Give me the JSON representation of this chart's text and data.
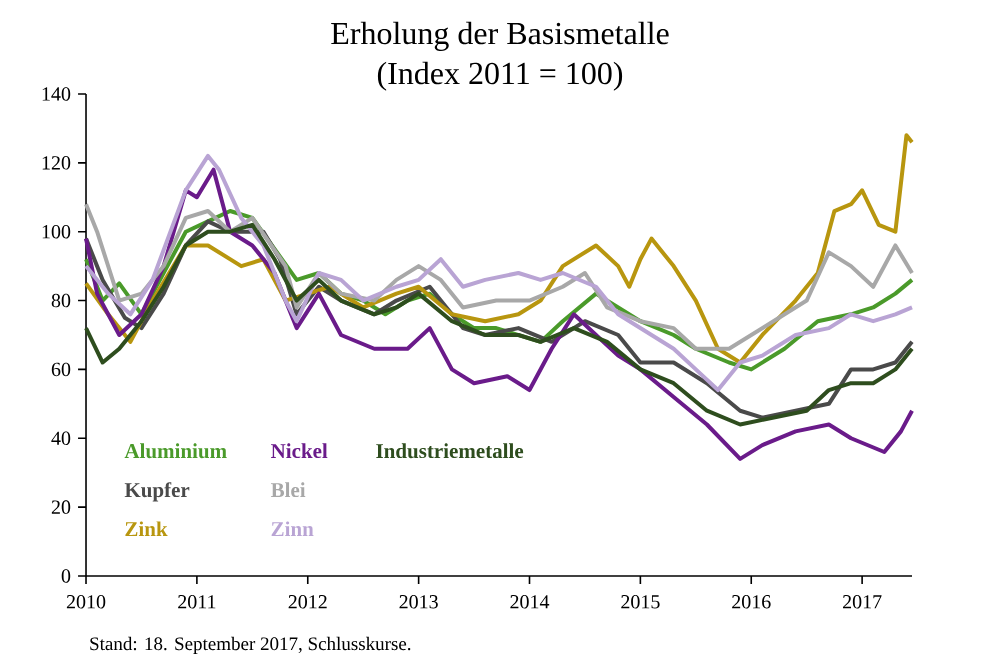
{
  "chart_data": {
    "type": "line",
    "title": "Erholung der Basismetalle",
    "subtitle": "(Index 2011 = 100)",
    "annotations": [
      "Stand: 18. September 2017, Schlusskurse."
    ],
    "xlim": [
      2010,
      2017.45
    ],
    "xticks": [
      2010,
      2011,
      2012,
      2013,
      2014,
      2015,
      2016,
      2017
    ],
    "ylim": [
      0,
      140
    ],
    "yticks": [
      0,
      20,
      40,
      60,
      80,
      100,
      120,
      140
    ],
    "grid": false,
    "legend": "bottom left",
    "marker": "none",
    "line_style": "solid",
    "series": [
      {
        "name": "Aluminium",
        "color": "#4a9a2a",
        "x": [
          2010.0,
          2010.15,
          2010.3,
          2010.5,
          2010.7,
          2010.9,
          2011.1,
          2011.3,
          2011.5,
          2011.7,
          2011.9,
          2012.1,
          2012.3,
          2012.5,
          2012.7,
          2012.9,
          2013.1,
          2013.3,
          2013.5,
          2013.7,
          2013.9,
          2014.1,
          2014.3,
          2014.6,
          2014.8,
          2015.0,
          2015.3,
          2015.5,
          2015.8,
          2016.0,
          2016.3,
          2016.6,
          2016.9,
          2017.1,
          2017.3,
          2017.45
        ],
        "values": [
          92,
          80,
          85,
          76,
          88,
          100,
          103,
          106,
          104,
          95,
          86,
          88,
          82,
          80,
          76,
          80,
          82,
          76,
          72,
          72,
          70,
          68,
          74,
          82,
          78,
          74,
          70,
          66,
          62,
          60,
          66,
          74,
          76,
          78,
          82,
          86
        ]
      },
      {
        "name": "Kupfer",
        "color": "#4a4a4a",
        "x": [
          2010.0,
          2010.15,
          2010.35,
          2010.5,
          2010.7,
          2010.9,
          2011.1,
          2011.3,
          2011.6,
          2011.75,
          2011.9,
          2012.1,
          2012.3,
          2012.6,
          2012.8,
          2013.1,
          2013.4,
          2013.6,
          2013.9,
          2014.2,
          2014.5,
          2014.8,
          2015.0,
          2015.3,
          2015.6,
          2015.9,
          2016.1,
          2016.4,
          2016.7,
          2016.9,
          2017.1,
          2017.3,
          2017.45
        ],
        "values": [
          98,
          86,
          75,
          72,
          82,
          96,
          103,
          100,
          100,
          92,
          76,
          84,
          80,
          76,
          80,
          84,
          72,
          70,
          72,
          68,
          74,
          70,
          62,
          62,
          56,
          48,
          46,
          48,
          50,
          60,
          60,
          62,
          68
        ]
      },
      {
        "name": "Zink",
        "color": "#b8960f",
        "x": [
          2010.0,
          2010.2,
          2010.4,
          2010.6,
          2010.9,
          2011.1,
          2011.4,
          2011.6,
          2011.8,
          2012.0,
          2012.2,
          2012.5,
          2012.8,
          2013.0,
          2013.3,
          2013.6,
          2013.9,
          2014.1,
          2014.3,
          2014.6,
          2014.8,
          2014.9,
          2015.0,
          2015.1,
          2015.3,
          2015.5,
          2015.7,
          2015.9,
          2016.1,
          2016.4,
          2016.6,
          2016.75,
          2016.9,
          2017.0,
          2017.15,
          2017.3,
          2017.4,
          2017.45
        ],
        "values": [
          85,
          76,
          68,
          80,
          96,
          96,
          90,
          92,
          80,
          82,
          84,
          78,
          82,
          84,
          76,
          74,
          76,
          80,
          90,
          96,
          90,
          84,
          92,
          98,
          90,
          80,
          66,
          62,
          70,
          80,
          88,
          106,
          108,
          112,
          102,
          100,
          128,
          126
        ]
      },
      {
        "name": "Nickel",
        "color": "#6a1b8a",
        "x": [
          2010.0,
          2010.1,
          2010.3,
          2010.5,
          2010.7,
          2010.9,
          2011.0,
          2011.15,
          2011.3,
          2011.5,
          2011.7,
          2011.9,
          2012.1,
          2012.3,
          2012.6,
          2012.9,
          2013.1,
          2013.3,
          2013.5,
          2013.8,
          2014.0,
          2014.2,
          2014.4,
          2014.6,
          2014.8,
          2015.0,
          2015.3,
          2015.6,
          2015.9,
          2016.1,
          2016.4,
          2016.7,
          2016.9,
          2017.2,
          2017.35,
          2017.45
        ],
        "values": [
          98,
          82,
          70,
          76,
          90,
          112,
          110,
          118,
          100,
          96,
          88,
          72,
          82,
          70,
          66,
          66,
          72,
          60,
          56,
          58,
          54,
          66,
          76,
          70,
          64,
          60,
          52,
          44,
          34,
          38,
          42,
          44,
          40,
          36,
          42,
          48
        ]
      },
      {
        "name": "Blei",
        "color": "#a8a8a8",
        "x": [
          2010.0,
          2010.1,
          2010.3,
          2010.5,
          2010.7,
          2010.9,
          2011.1,
          2011.3,
          2011.5,
          2011.8,
          2011.9,
          2012.1,
          2012.3,
          2012.6,
          2012.8,
          2013.0,
          2013.2,
          2013.4,
          2013.7,
          2014.0,
          2014.3,
          2014.5,
          2014.7,
          2015.0,
          2015.3,
          2015.5,
          2015.8,
          2016.0,
          2016.3,
          2016.5,
          2016.7,
          2016.9,
          2017.1,
          2017.3,
          2017.45
        ],
        "values": [
          108,
          100,
          80,
          82,
          90,
          104,
          106,
          100,
          104,
          90,
          78,
          88,
          82,
          80,
          86,
          90,
          86,
          78,
          80,
          80,
          84,
          88,
          78,
          74,
          72,
          66,
          66,
          70,
          76,
          80,
          94,
          90,
          84,
          96,
          88
        ]
      },
      {
        "name": "Zinn",
        "color": "#b9a4d4",
        "x": [
          2010.0,
          2010.2,
          2010.4,
          2010.6,
          2010.9,
          2011.1,
          2011.2,
          2011.4,
          2011.6,
          2011.8,
          2011.9,
          2012.1,
          2012.3,
          2012.5,
          2012.8,
          2013.0,
          2013.2,
          2013.4,
          2013.6,
          2013.9,
          2014.1,
          2014.3,
          2014.6,
          2014.8,
          2015.0,
          2015.3,
          2015.5,
          2015.7,
          2015.9,
          2016.1,
          2016.4,
          2016.7,
          2016.9,
          2017.1,
          2017.3,
          2017.45
        ],
        "values": [
          90,
          82,
          76,
          86,
          112,
          122,
          118,
          104,
          96,
          80,
          74,
          88,
          86,
          80,
          84,
          86,
          92,
          84,
          86,
          88,
          86,
          88,
          84,
          76,
          72,
          66,
          60,
          54,
          62,
          64,
          70,
          72,
          76,
          74,
          76,
          78
        ]
      },
      {
        "name": "Industriemetalle",
        "color": "#2e4d1e",
        "x": [
          2010.0,
          2010.15,
          2010.3,
          2010.5,
          2010.7,
          2010.9,
          2011.1,
          2011.3,
          2011.5,
          2011.7,
          2011.9,
          2012.1,
          2012.3,
          2012.6,
          2012.8,
          2013.0,
          2013.3,
          2013.6,
          2013.9,
          2014.1,
          2014.4,
          2014.7,
          2015.0,
          2015.3,
          2015.6,
          2015.9,
          2016.2,
          2016.5,
          2016.7,
          2016.9,
          2017.1,
          2017.3,
          2017.45
        ],
        "values": [
          72,
          62,
          66,
          74,
          84,
          96,
          100,
          100,
          102,
          92,
          80,
          86,
          80,
          76,
          78,
          82,
          74,
          70,
          70,
          68,
          72,
          68,
          60,
          56,
          48,
          44,
          46,
          48,
          54,
          56,
          56,
          60,
          66
        ]
      }
    ]
  }
}
